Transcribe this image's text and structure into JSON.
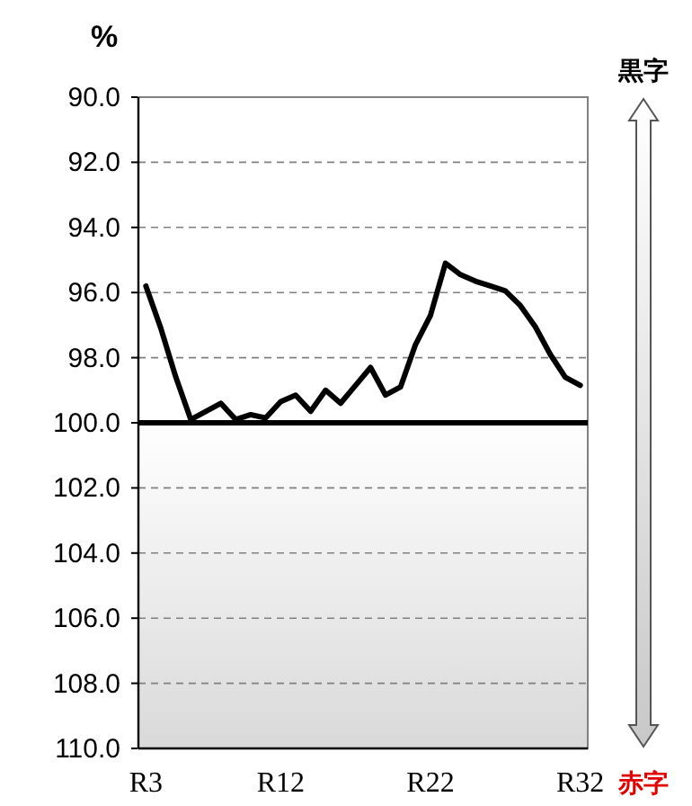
{
  "chart_data": {
    "type": "line",
    "ylabel": "%",
    "categories": [
      "R3",
      null,
      null,
      null,
      null,
      null,
      null,
      null,
      null,
      "R12",
      null,
      null,
      null,
      null,
      null,
      null,
      null,
      null,
      null,
      "R22",
      null,
      null,
      null,
      null,
      null,
      null,
      null,
      null,
      null,
      "R32"
    ],
    "series": [
      {
        "color": "#000000",
        "values": [
          95.8,
          97.1,
          98.6,
          99.9,
          99.65,
          99.4,
          99.9,
          99.75,
          99.85,
          99.35,
          99.15,
          99.65,
          99.0,
          99.4,
          98.85,
          98.3,
          99.15,
          98.9,
          97.6,
          96.7,
          95.1,
          95.45,
          95.65,
          95.8,
          95.95,
          96.4,
          97.05,
          97.9,
          98.6,
          98.85
        ]
      }
    ],
    "ylim": [
      110,
      90
    ],
    "yticks": [
      {
        "value": 90,
        "label": "90.0"
      },
      {
        "value": 92,
        "label": "92.0"
      },
      {
        "value": 94,
        "label": "94.0"
      },
      {
        "value": 96,
        "label": "96.0"
      },
      {
        "value": 98,
        "label": "98.0"
      },
      {
        "value": 100,
        "label": "100.0"
      },
      {
        "value": 102,
        "label": "102.0"
      },
      {
        "value": 104,
        "label": "104.0"
      },
      {
        "value": 106,
        "label": "106.0"
      },
      {
        "value": 108,
        "label": "108.0"
      },
      {
        "value": 110,
        "label": "110.0"
      }
    ],
    "grid": "y",
    "marker": "none",
    "line_style": "solid",
    "ref_lines": [
      {
        "axis": "y",
        "value": 100,
        "color": "#000000"
      }
    ],
    "bands": [
      {
        "axis": "y",
        "from": 100,
        "to": 110,
        "color": "#d9d9d9"
      }
    ],
    "annotations": [
      "黒字",
      "赤字"
    ]
  }
}
